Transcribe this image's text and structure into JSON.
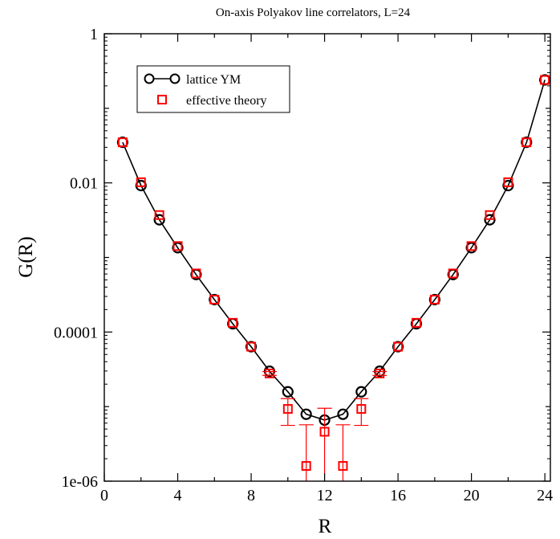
{
  "chart_data": {
    "type": "scatter",
    "title": "On-axis Polyakov line correlators, L=24",
    "xlabel": "R",
    "ylabel": "G(R)",
    "xlim": [
      0,
      24.3
    ],
    "ylim": [
      1e-06,
      1
    ],
    "yscale": "log",
    "xticks": [
      0,
      4,
      8,
      12,
      16,
      20,
      24
    ],
    "xtick_labels": [
      "0",
      "4",
      "8",
      "12",
      "16",
      "20",
      "24"
    ],
    "yticks": [
      1e-06,
      0.0001,
      0.01,
      1
    ],
    "ytick_labels": [
      "1e-06",
      "0.0001",
      "0.01",
      "1"
    ],
    "grid": false,
    "legend_position": "top-left",
    "series": [
      {
        "name": "lattice YM",
        "style": "line-circle",
        "color": "#000000",
        "x": [
          1,
          2,
          3,
          4,
          5,
          6,
          7,
          8,
          9,
          10,
          11,
          12,
          13,
          14,
          15,
          16,
          17,
          18,
          19,
          20,
          21,
          22,
          23,
          24
        ],
        "y": [
          0.035,
          0.0092,
          0.0032,
          0.00135,
          0.00059,
          0.000272,
          0.000129,
          6.36e-05,
          2.98e-05,
          1.58e-05,
          7.9e-06,
          6.6e-06,
          7.9e-06,
          1.58e-05,
          2.98e-05,
          6.36e-05,
          0.000129,
          0.000272,
          0.00059,
          0.00135,
          0.0032,
          0.0092,
          0.035,
          0.24
        ]
      },
      {
        "name": "effective theory",
        "style": "square-errorbar",
        "color": "#ff0000",
        "x": [
          1,
          2,
          3,
          4,
          5,
          6,
          7,
          8,
          9,
          10,
          11,
          12,
          13,
          14,
          15,
          16,
          17,
          18,
          19,
          20,
          21,
          22,
          23,
          24
        ],
        "y": [
          0.035,
          0.0102,
          0.0037,
          0.00142,
          0.00061,
          0.000272,
          0.000133,
          6.36e-05,
          2.78e-05,
          9.3e-06,
          1.6e-06,
          4.6e-06,
          1.6e-06,
          9.3e-06,
          2.78e-05,
          6.36e-05,
          0.000133,
          0.000272,
          0.00061,
          0.00142,
          0.0037,
          0.0102,
          0.035,
          0.24
        ],
        "err_low": [
          0.035,
          0.0102,
          0.0037,
          0.00142,
          0.00061,
          0.000272,
          0.000133,
          6.36e-05,
          2.62e-05,
          5.6e-06,
          1e-06,
          1e-06,
          1e-06,
          5.6e-06,
          2.62e-05,
          6.36e-05,
          0.000133,
          0.000272,
          0.00061,
          0.00142,
          0.0037,
          0.0102,
          0.035,
          0.24
        ],
        "err_high": [
          0.035,
          0.0102,
          0.0037,
          0.00142,
          0.00061,
          0.000272,
          0.000133,
          6.36e-05,
          2.95e-05,
          1.28e-05,
          5.7e-06,
          9.5e-06,
          5.7e-06,
          1.28e-05,
          2.95e-05,
          6.36e-05,
          0.000133,
          0.000272,
          0.00061,
          0.00142,
          0.0037,
          0.0102,
          0.035,
          0.24
        ]
      }
    ]
  }
}
